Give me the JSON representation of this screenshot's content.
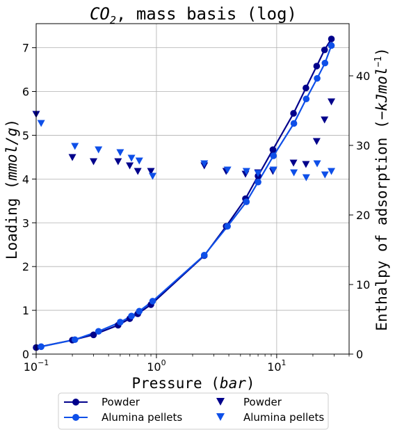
{
  "chart_data": {
    "type": "line",
    "title_italic": "CO",
    "title_sub": "2",
    "title_rest": ", mass basis (log)",
    "xlabel_text": "Pressure (",
    "xlabel_italic": "bar",
    "xlabel_close": ")",
    "ylabel_left_text": "Loading (",
    "ylabel_left_italic": "mmol/g",
    "ylabel_left_close": ")",
    "ylabel_right_text": "Enthalpy of adsorption (",
    "ylabel_right_italic": "−kJmol",
    "ylabel_right_sup": "−1",
    "ylabel_right_close": ")",
    "x_scale": "log",
    "xlim": [
      0.1,
      40
    ],
    "ylim_left": [
      0,
      7.55
    ],
    "ylim_right": [
      0,
      47.5
    ],
    "x_ticks": [
      {
        "value": 0.1,
        "base": "10",
        "exp": "−1"
      },
      {
        "value": 1,
        "base": "10",
        "exp": "0"
      },
      {
        "value": 10,
        "base": "10",
        "exp": "1"
      }
    ],
    "y_left_ticks": [
      0,
      1,
      2,
      3,
      4,
      5,
      6,
      7
    ],
    "y_right_ticks": [
      0,
      10,
      20,
      30,
      40
    ],
    "grid": true,
    "legend_placement": "bottom-center",
    "series": [
      {
        "name": "Powder",
        "kind": "loading",
        "axis": "left",
        "color": "#00008b",
        "marker": "circle",
        "x": [
          0.1,
          0.2,
          0.3,
          0.48,
          0.6,
          0.7,
          0.9,
          2.5,
          3.8,
          5.5,
          7.0,
          9.3,
          13.8,
          17.5,
          21.5,
          25.0,
          28.5
        ],
        "y": [
          0.15,
          0.32,
          0.44,
          0.66,
          0.81,
          0.92,
          1.13,
          2.25,
          2.92,
          3.55,
          4.07,
          4.67,
          5.5,
          6.08,
          6.58,
          6.95,
          7.2
        ]
      },
      {
        "name": "Alumina pellets",
        "kind": "loading",
        "axis": "left",
        "color": "#0e4fe8",
        "marker": "circle",
        "x": [
          0.11,
          0.21,
          0.33,
          0.5,
          0.62,
          0.72,
          0.93,
          2.5,
          3.9,
          5.6,
          7.0,
          9.4,
          13.9,
          17.6,
          21.7,
          25.2,
          28.5
        ],
        "y": [
          0.17,
          0.33,
          0.52,
          0.73,
          0.87,
          0.98,
          1.21,
          2.26,
          2.92,
          3.48,
          3.93,
          4.53,
          5.27,
          5.83,
          6.3,
          6.65,
          7.05
        ]
      },
      {
        "name": "Powder",
        "kind": "enthalpy",
        "axis": "right",
        "color": "#00008b",
        "marker": "triangle-down",
        "x": [
          0.1,
          0.2,
          0.3,
          0.48,
          0.6,
          0.7,
          0.9,
          2.5,
          3.8,
          5.5,
          7.0,
          9.3,
          13.8,
          17.5,
          21.5,
          25.0,
          28.5
        ],
        "y": [
          34.5,
          28.3,
          27.7,
          27.7,
          27.1,
          26.3,
          26.3,
          27.1,
          26.3,
          25.9,
          26.1,
          26.3,
          27.5,
          27.3,
          30.6,
          33.7,
          36.3
        ]
      },
      {
        "name": "Alumina pellets",
        "kind": "enthalpy",
        "axis": "right",
        "color": "#0e4fe8",
        "marker": "triangle-down",
        "x": [
          0.11,
          0.21,
          0.33,
          0.5,
          0.62,
          0.72,
          0.93,
          2.5,
          3.9,
          5.6,
          7.0,
          9.4,
          13.9,
          17.6,
          21.7,
          25.2,
          28.5
        ],
        "y": [
          33.2,
          29.9,
          29.4,
          29.0,
          28.2,
          27.8,
          25.6,
          27.4,
          26.5,
          26.3,
          26.0,
          26.5,
          26.1,
          25.4,
          27.4,
          25.8,
          26.3
        ]
      }
    ]
  }
}
